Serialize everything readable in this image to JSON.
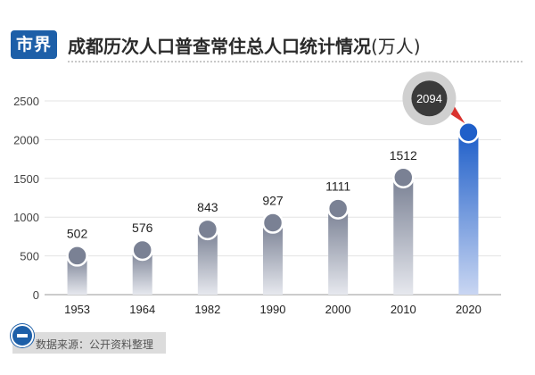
{
  "brand": "市界",
  "title": "成都历次人口普查常住总人口统计情况",
  "unit": "(万人)",
  "source": "数据来源：公开资料整理",
  "colors": {
    "bar_top": "#7a8194",
    "bar_bottom": "#e6e8ee",
    "highlight_top": "#1f5fc9",
    "highlight_bottom": "#c9d6f2",
    "callout": "#3a3a3a"
  },
  "chart_data": {
    "type": "bar",
    "categories": [
      "1953",
      "1964",
      "1982",
      "1990",
      "2000",
      "2010",
      "2020"
    ],
    "values": [
      502,
      576,
      843,
      927,
      1111,
      1512,
      2094
    ],
    "labels": [
      "502",
      "576",
      "843",
      "927",
      "1111",
      "1512",
      "2094"
    ],
    "yticks": [
      "0",
      "500",
      "1000",
      "1500",
      "2000",
      "2500"
    ],
    "ylim": [
      0,
      2500
    ],
    "highlight_index": 6,
    "grid": true
  }
}
